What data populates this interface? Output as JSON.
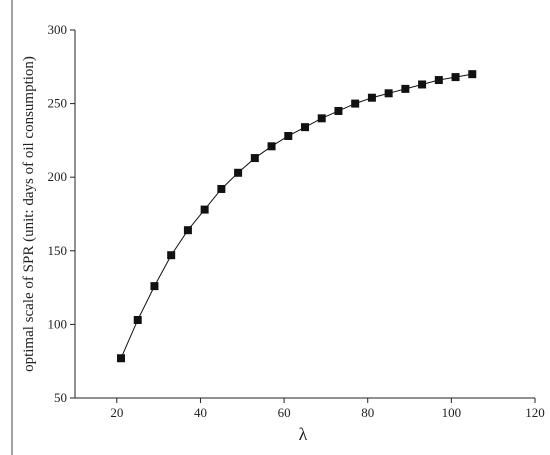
{
  "chart_data": {
    "type": "line",
    "x_label": "λ",
    "y_label": "optimal scale of SPR (unit: days of oil consumption)",
    "x": [
      21,
      25,
      29,
      33,
      37,
      41,
      45,
      49,
      53,
      57,
      61,
      65,
      69,
      73,
      77,
      81,
      85,
      89,
      93,
      97,
      101,
      105
    ],
    "series": [
      {
        "color": "#111111",
        "values": [
          77,
          103,
          126,
          147,
          164,
          178,
          192,
          203,
          213,
          221,
          228,
          234,
          240,
          245,
          250,
          254,
          257,
          260,
          263,
          266,
          268,
          270
        ]
      }
    ],
    "xlim": [
      10,
      120
    ],
    "xticks": [
      20,
      40,
      60,
      80,
      100,
      120
    ],
    "ylim": [
      50,
      300
    ],
    "yticks": [
      50,
      100,
      150,
      200,
      250,
      300
    ]
  }
}
